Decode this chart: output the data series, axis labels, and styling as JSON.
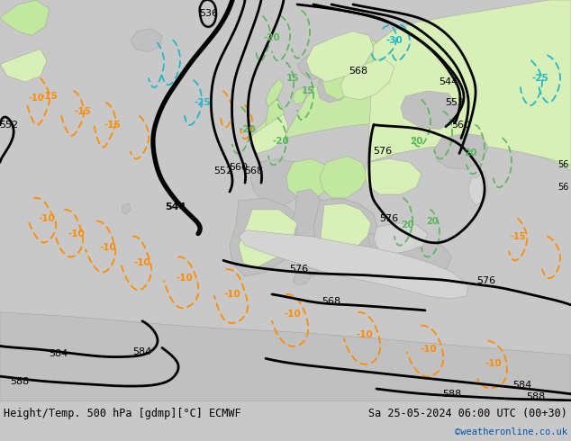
{
  "title_left": "Height/Temp. 500 hPa [gdmp][°C] ECMWF",
  "title_right": "Sa 25-05-2024 06:00 UTC (00+30)",
  "credit": "©weatheronline.co.uk",
  "figsize": [
    6.34,
    4.9
  ],
  "dpi": 100,
  "bg_ocean": "#d8d8d8",
  "bg_land_gray": "#b8b8b8",
  "bg_land_green": "#c8e8b0",
  "footer_bg": "#c8c8c8",
  "font_color": "#000000",
  "credit_color": "#0055aa"
}
